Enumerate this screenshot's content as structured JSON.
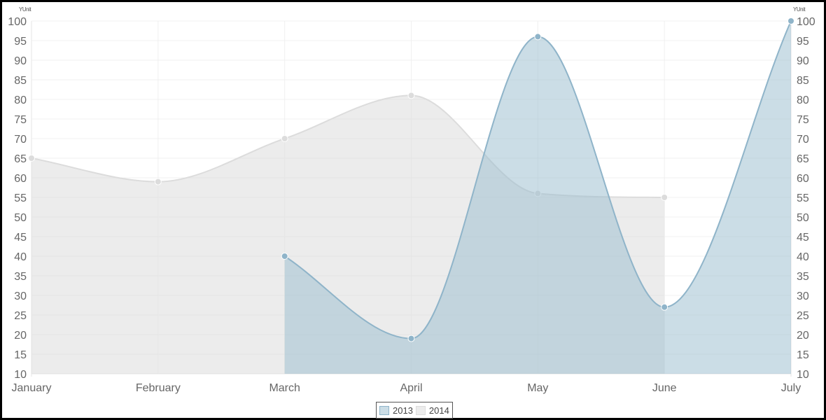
{
  "chart_data": {
    "type": "area",
    "categories": [
      "January",
      "February",
      "March",
      "April",
      "May",
      "June",
      "July"
    ],
    "series": [
      {
        "name": "2013",
        "values": [
          null,
          null,
          40,
          19,
          96,
          27,
          100
        ],
        "stroke": "#8fb4c9",
        "fill": "rgba(151,187,205,0.5)"
      },
      {
        "name": "2014",
        "values": [
          65,
          59,
          70,
          81,
          56,
          55,
          null
        ],
        "stroke": "#dcdcdc",
        "fill": "rgba(220,220,220,0.55)"
      }
    ],
    "ylim": [
      10,
      100
    ],
    "yticks": [
      10,
      15,
      20,
      25,
      30,
      35,
      40,
      45,
      50,
      55,
      60,
      65,
      70,
      75,
      80,
      85,
      90,
      95,
      100
    ],
    "y_axes": "left-and-right",
    "y_unit_label": "YUnit",
    "grid": true,
    "legend_position": "bottom-center",
    "curve": "smooth"
  }
}
